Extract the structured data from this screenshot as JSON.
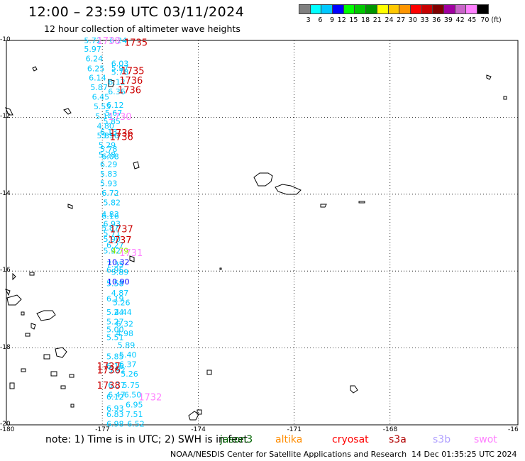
{
  "title": "12:00 – 23:59 UTC 03/11/2024",
  "subtitle": "12 hour collection of altimeter wave heights",
  "colorbar": {
    "colors": [
      "#808080",
      "#00ffff",
      "#00c8ff",
      "#0000ff",
      "#00ff00",
      "#00c800",
      "#009600",
      "#ffff00",
      "#ffc800",
      "#ff9600",
      "#ff0000",
      "#c80000",
      "#800000",
      "#a000a0",
      "#c864c8",
      "#ff80ff",
      "#000000"
    ],
    "labels": [
      "3",
      "6",
      "9",
      "12",
      "15",
      "18",
      "21",
      "24",
      "27",
      "30",
      "33",
      "36",
      "39",
      "42",
      "45",
      "70 (ft)"
    ]
  },
  "lat_labels": [
    "-10",
    "-12",
    "-14",
    "-16",
    "-18",
    "-20"
  ],
  "lon_labels": [
    "-180",
    "-177",
    "-174",
    "-171",
    "-168",
    "-16"
  ],
  "wave_heights": [
    {
      "v": "5.72",
      "lon": -177.3,
      "lat": -10.0,
      "color": "#00c8ff"
    },
    {
      "v": "5.97",
      "lon": -177.3,
      "lat": -10.22,
      "color": "#00c8ff"
    },
    {
      "v": "6.24",
      "lon": -177.25,
      "lat": -10.47,
      "color": "#00c8ff"
    },
    {
      "v": "6.25",
      "lon": -177.2,
      "lat": -10.73,
      "color": "#00c8ff"
    },
    {
      "v": "6.14",
      "lon": -177.15,
      "lat": -10.97,
      "color": "#00c8ff"
    },
    {
      "v": "5.87",
      "lon": -177.1,
      "lat": -11.22,
      "color": "#00c8ff"
    },
    {
      "v": "6.45",
      "lon": -177.05,
      "lat": -11.47,
      "color": "#00c8ff"
    },
    {
      "v": "5.55",
      "lon": -177.0,
      "lat": -11.72,
      "color": "#00c8ff"
    },
    {
      "v": "5.14",
      "lon": -176.95,
      "lat": -11.97,
      "color": "#00c8ff"
    },
    {
      "v": "4.80",
      "lon": -176.9,
      "lat": -12.22,
      "color": "#00c8ff"
    },
    {
      "v": "5.85",
      "lon": -176.9,
      "lat": -12.47,
      "color": "#00c8ff"
    },
    {
      "v": "5.29",
      "lon": -176.85,
      "lat": -12.72,
      "color": "#00c8ff"
    },
    {
      "v": "5.28",
      "lon": -176.85,
      "lat": -12.97,
      "color": "#00c8ff"
    },
    {
      "v": "6.29",
      "lon": -176.8,
      "lat": -13.22,
      "color": "#00c8ff"
    },
    {
      "v": "5.83",
      "lon": -176.8,
      "lat": -13.47,
      "color": "#00c8ff"
    },
    {
      "v": "5.93",
      "lon": -176.8,
      "lat": -13.72,
      "color": "#00c8ff"
    },
    {
      "v": "6.72",
      "lon": -176.75,
      "lat": -13.97,
      "color": "#00c8ff"
    },
    {
      "v": "5.82",
      "lon": -176.7,
      "lat": -14.22,
      "color": "#00c8ff"
    },
    {
      "v": "6.16",
      "lon": -176.75,
      "lat": -14.57,
      "color": "#00c8ff"
    },
    {
      "v": "5.87",
      "lon": -176.75,
      "lat": -14.87,
      "color": "#00c8ff"
    },
    {
      "v": "5.90",
      "lon": -176.7,
      "lat": -15.17,
      "color": "#00c8ff"
    },
    {
      "v": "5.92",
      "lon": -176.7,
      "lat": -15.47,
      "color": "#00c8ff"
    },
    {
      "v": "7.35",
      "lon": -176.6,
      "lat": -15.82,
      "color": "#00c8ff"
    },
    {
      "v": "6.95",
      "lon": -176.6,
      "lat": -15.97,
      "color": "#00c8ff"
    },
    {
      "v": "5.58",
      "lon": -176.6,
      "lat": -16.32,
      "color": "#00c8ff"
    },
    {
      "v": "6.19",
      "lon": -176.6,
      "lat": -16.72,
      "color": "#00c8ff"
    },
    {
      "v": "5.24",
      "lon": -176.6,
      "lat": -17.07,
      "color": "#00c8ff"
    },
    {
      "v": "5.27",
      "lon": -176.6,
      "lat": -17.32,
      "color": "#00c8ff"
    },
    {
      "v": "5.00",
      "lon": -176.6,
      "lat": -17.52,
      "color": "#00c8ff"
    },
    {
      "v": "5.51",
      "lon": -176.6,
      "lat": -17.72,
      "color": "#00c8ff"
    },
    {
      "v": "5.85",
      "lon": -176.6,
      "lat": -18.22,
      "color": "#00c8ff"
    },
    {
      "v": "6.16",
      "lon": -176.6,
      "lat": -18.47,
      "color": "#00c8ff"
    },
    {
      "v": "5.92",
      "lon": -176.55,
      "lat": -18.57,
      "color": "#00c8ff"
    },
    {
      "v": "6.37",
      "lon": -176.55,
      "lat": -18.97,
      "color": "#00c8ff"
    },
    {
      "v": "6.47",
      "lon": -176.55,
      "lat": -19.22,
      "color": "#00c8ff"
    },
    {
      "v": "6.12",
      "lon": -176.6,
      "lat": -19.27,
      "color": "#00c8ff"
    },
    {
      "v": "6.93",
      "lon": -176.6,
      "lat": -19.57,
      "color": "#00c8ff"
    },
    {
      "v": "6.83",
      "lon": -176.6,
      "lat": -19.72,
      "color": "#00c8ff"
    },
    {
      "v": "6.98",
      "lon": -176.6,
      "lat": -19.97,
      "color": "#00c8ff"
    },
    {
      "v": "6.24",
      "lon": -176.5,
      "lat": -10.0,
      "color": "#00c8ff"
    },
    {
      "v": "6.03",
      "lon": -176.45,
      "lat": -10.6,
      "color": "#00c8ff"
    },
    {
      "v": "5.97",
      "lon": -176.45,
      "lat": -10.72,
      "color": "#00c8ff"
    },
    {
      "v": "5.78",
      "lon": -176.45,
      "lat": -10.82,
      "color": "#00c8ff"
    },
    {
      "v": "6.12",
      "lon": -176.55,
      "lat": -11.08,
      "color": "#00c8ff"
    },
    {
      "v": "6.36",
      "lon": -176.55,
      "lat": -11.33,
      "color": "#00c8ff"
    },
    {
      "v": "6.12",
      "lon": -176.6,
      "lat": -11.68,
      "color": "#00c8ff"
    },
    {
      "v": "5.67",
      "lon": -176.65,
      "lat": -11.88,
      "color": "#00c8ff"
    },
    {
      "v": "5.85",
      "lon": -176.7,
      "lat": -12.1,
      "color": "#00c8ff"
    },
    {
      "v": "6.13",
      "lon": -176.8,
      "lat": -12.38,
      "color": "#00c8ff"
    },
    {
      "v": "5.96",
      "lon": -176.75,
      "lat": -12.47,
      "color": "#00c8ff"
    },
    {
      "v": "5.78",
      "lon": -176.8,
      "lat": -12.82,
      "color": "#00c8ff"
    },
    {
      "v": "6.08",
      "lon": -176.75,
      "lat": -13.02,
      "color": "#00c8ff"
    },
    {
      "v": "4.83",
      "lon": -176.75,
      "lat": -14.52,
      "color": "#00c8ff"
    },
    {
      "v": "6.93",
      "lon": -176.7,
      "lat": -14.77,
      "color": "#00c8ff"
    },
    {
      "v": "5.71",
      "lon": -176.7,
      "lat": -15.02,
      "color": "#00c8ff"
    },
    {
      "v": "6.27",
      "lon": -176.6,
      "lat": -15.32,
      "color": "#00c8ff"
    },
    {
      "v": "5.89",
      "lon": -176.45,
      "lat": -16.02,
      "color": "#00c8ff"
    },
    {
      "v": "4.87",
      "lon": -176.45,
      "lat": -16.57,
      "color": "#00c8ff"
    },
    {
      "v": "5.26",
      "lon": -176.4,
      "lat": -16.82,
      "color": "#00c8ff"
    },
    {
      "v": "4.44",
      "lon": -176.35,
      "lat": -17.07,
      "color": "#00c8ff"
    },
    {
      "v": "6.32",
      "lon": -176.3,
      "lat": -17.37,
      "color": "#00c8ff"
    },
    {
      "v": "4.98",
      "lon": -176.3,
      "lat": -17.62,
      "color": "#00c8ff"
    },
    {
      "v": "5.89",
      "lon": -176.25,
      "lat": -17.92,
      "color": "#00c8ff"
    },
    {
      "v": "5.40",
      "lon": -176.2,
      "lat": -18.17,
      "color": "#00c8ff"
    },
    {
      "v": "6.37",
      "lon": -176.2,
      "lat": -18.42,
      "color": "#00c8ff"
    },
    {
      "v": "5.26",
      "lon": -176.15,
      "lat": -18.67,
      "color": "#00c8ff"
    },
    {
      "v": "5.75",
      "lon": -176.1,
      "lat": -18.97,
      "color": "#00c8ff"
    },
    {
      "v": "6.50",
      "lon": -176.05,
      "lat": -19.22,
      "color": "#00c8ff"
    },
    {
      "v": "6.95",
      "lon": -176.0,
      "lat": -19.47,
      "color": "#00c8ff"
    },
    {
      "v": "7.51",
      "lon": -176.0,
      "lat": -19.72,
      "color": "#00c8ff"
    },
    {
      "v": "6.52",
      "lon": -175.95,
      "lat": -19.97,
      "color": "#00c8ff"
    },
    {
      "v": "4.79",
      "lon": -176.45,
      "lat": -15.47,
      "color": "#96e600"
    },
    {
      "v": "10.32",
      "lon": -176.5,
      "lat": -15.77,
      "color": "#0000ff"
    },
    {
      "v": "10.90",
      "lon": -176.5,
      "lat": -16.27,
      "color": "#0000ff"
    }
  ],
  "time_labels": [
    {
      "v": "1738",
      "lon": -176.8,
      "lat": -10.0,
      "color": "#ff80ff"
    },
    {
      "v": "1735",
      "lon": -175.95,
      "lat": -10.05,
      "color": "#cc0000"
    },
    {
      "v": "1735",
      "lon": -176.05,
      "lat": -10.78,
      "color": "#cc0000"
    },
    {
      "v": "1736",
      "lon": -176.1,
      "lat": -11.03,
      "color": "#cc0000"
    },
    {
      "v": "1736",
      "lon": -176.15,
      "lat": -11.28,
      "color": "#cc0000"
    },
    {
      "v": "1730",
      "lon": -176.45,
      "lat": -11.97,
      "color": "#ff80ff"
    },
    {
      "v": "1736",
      "lon": -176.4,
      "lat": -12.4,
      "color": "#cc0000"
    },
    {
      "v": "1736",
      "lon": -176.4,
      "lat": -12.5,
      "color": "#cc0000"
    },
    {
      "v": "1737",
      "lon": -176.4,
      "lat": -14.9,
      "color": "#cc0000"
    },
    {
      "v": "1737",
      "lon": -176.45,
      "lat": -15.18,
      "color": "#cc0000"
    },
    {
      "v": "1731",
      "lon": -176.1,
      "lat": -15.52,
      "color": "#ff80ff"
    },
    {
      "v": "1737",
      "lon": -176.8,
      "lat": -18.47,
      "color": "#cc0000"
    },
    {
      "v": "1736",
      "lon": -176.8,
      "lat": -18.57,
      "color": "#cc0000"
    },
    {
      "v": "1738",
      "lon": -176.8,
      "lat": -18.97,
      "color": "#cc0000"
    },
    {
      "v": "1732",
      "lon": -175.5,
      "lat": -19.27,
      "color": "#ff80ff"
    }
  ],
  "footer": {
    "note": "note:  1) Time is in UTC;  2) SWH is in feet",
    "satellites": [
      {
        "name": "jason3",
        "color": "#006400"
      },
      {
        "name": "altika",
        "color": "#ff8c00"
      },
      {
        "name": "cryosat",
        "color": "#ff0000"
      },
      {
        "name": "s3a",
        "color": "#b00000"
      },
      {
        "name": "s3b",
        "color": "#b0a0ff"
      },
      {
        "name": "swot",
        "color": "#ff80ff"
      }
    ],
    "credit": "NOAA/NESDIS Center for Satellite Applications and Research",
    "timestamp": "14 Dec 01:35:25 UTC 2024"
  }
}
